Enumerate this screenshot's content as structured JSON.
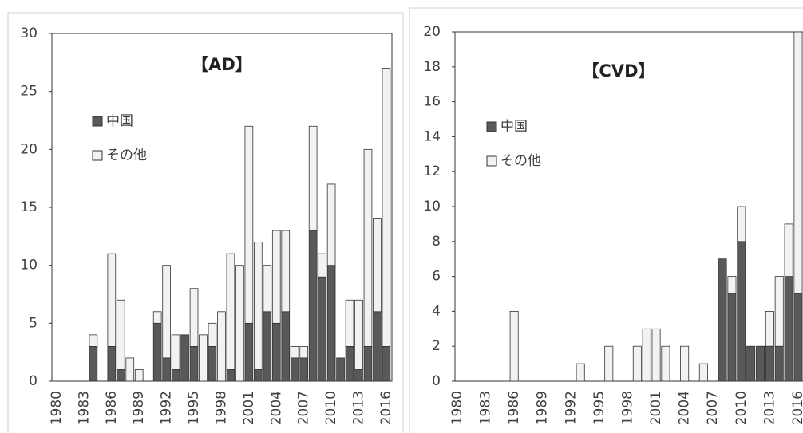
{
  "chart_data": [
    {
      "type": "bar",
      "stacked": true,
      "title": "【AD】",
      "legend": "upper left",
      "categories": [
        "1980",
        null,
        null,
        "1983",
        null,
        null,
        "1986",
        null,
        null,
        "1989",
        null,
        null,
        "1992",
        null,
        null,
        "1995",
        null,
        null,
        "1998",
        null,
        null,
        "2001",
        null,
        null,
        "2004",
        null,
        null,
        "2007",
        null,
        null,
        "2010",
        null,
        null,
        "2013",
        null,
        null,
        "2016"
      ],
      "series": [
        {
          "name": "中国",
          "color": "#595959",
          "values": [
            0,
            0,
            0,
            0,
            3,
            0,
            3,
            1,
            0,
            0,
            0,
            5,
            2,
            1,
            4,
            3,
            0,
            3,
            0,
            1,
            0,
            5,
            1,
            6,
            5,
            6,
            2,
            2,
            13,
            9,
            10,
            2,
            3,
            1,
            3,
            6,
            3
          ]
        },
        {
          "name": "その他",
          "color": "#f2f2f2",
          "values": [
            0,
            0,
            0,
            0,
            1,
            0,
            8,
            6,
            2,
            1,
            0,
            1,
            8,
            3,
            0,
            5,
            4,
            2,
            6,
            10,
            10,
            17,
            11,
            4,
            8,
            7,
            1,
            1,
            9,
            2,
            7,
            0,
            4,
            6,
            17,
            8,
            24
          ]
        }
      ],
      "ylim": [
        0,
        30
      ],
      "yticks": [
        0,
        5,
        10,
        15,
        20,
        25,
        30
      ]
    },
    {
      "type": "bar",
      "stacked": true,
      "title": "【CVD】",
      "legend": "upper left",
      "categories": [
        "1980",
        null,
        null,
        "1983",
        null,
        null,
        "1986",
        null,
        null,
        "1989",
        null,
        null,
        "1992",
        null,
        null,
        "1995",
        null,
        null,
        "1998",
        null,
        null,
        "2001",
        null,
        null,
        "2004",
        null,
        null,
        "2007",
        null,
        null,
        "2010",
        null,
        null,
        "2013",
        null,
        null,
        "2016"
      ],
      "series": [
        {
          "name": "中国",
          "color": "#595959",
          "values": [
            0,
            0,
            0,
            0,
            0,
            0,
            0,
            0,
            0,
            0,
            0,
            0,
            0,
            0,
            0,
            0,
            0,
            0,
            0,
            0,
            0,
            0,
            0,
            0,
            0,
            0,
            0,
            0,
            7,
            5,
            8,
            2,
            2,
            2,
            2,
            6,
            5
          ]
        },
        {
          "name": "その他",
          "color": "#f2f2f2",
          "values": [
            0,
            0,
            0,
            0,
            0,
            0,
            4,
            0,
            0,
            0,
            0,
            0,
            0,
            1,
            0,
            0,
            2,
            0,
            0,
            2,
            3,
            3,
            2,
            0,
            2,
            0,
            1,
            0,
            0,
            1,
            2,
            0,
            0,
            2,
            4,
            3,
            15
          ]
        }
      ],
      "ylim": [
        0,
        20
      ],
      "yticks": [
        0,
        2,
        4,
        6,
        8,
        10,
        12,
        14,
        16,
        18,
        20
      ]
    }
  ]
}
